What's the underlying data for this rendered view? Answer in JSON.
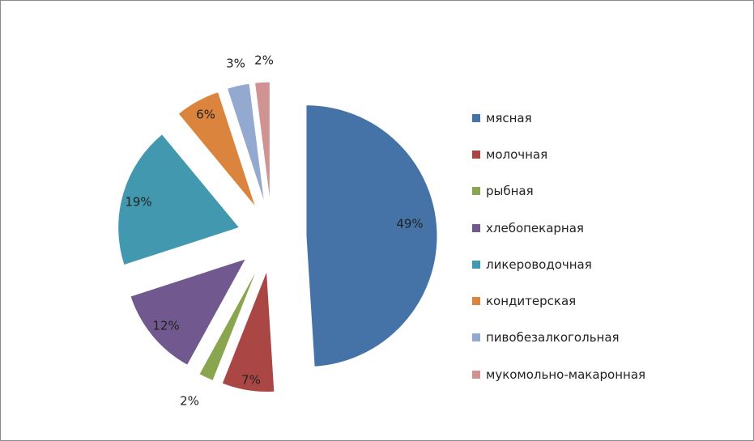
{
  "chart_data": {
    "type": "pie",
    "exploded": true,
    "start_angle_deg": 0,
    "direction": "clockwise",
    "legend_position": "right",
    "labels_format": "percent",
    "title": "",
    "slices": [
      {
        "name": "мясная",
        "value": 49,
        "label": "49%",
        "color": "#4572A7"
      },
      {
        "name": "молочная",
        "value": 7,
        "label": "7%",
        "color": "#AA4643"
      },
      {
        "name": "рыбная",
        "value": 2,
        "label": "2%",
        "color": "#89A54E"
      },
      {
        "name": "хлебопекарная",
        "value": 12,
        "label": "12%",
        "color": "#71588F"
      },
      {
        "name": "ликероводочная",
        "value": 19,
        "label": "19%",
        "color": "#4198AF"
      },
      {
        "name": "кондитерская",
        "value": 6,
        "label": "6%",
        "color": "#DB843D"
      },
      {
        "name": "пивобезалкогольная",
        "value": 3,
        "label": "3%",
        "color": "#93A9CF"
      },
      {
        "name": "мукомольно-макаронная",
        "value": 2,
        "label": "2%",
        "color": "#D19392"
      }
    ]
  }
}
